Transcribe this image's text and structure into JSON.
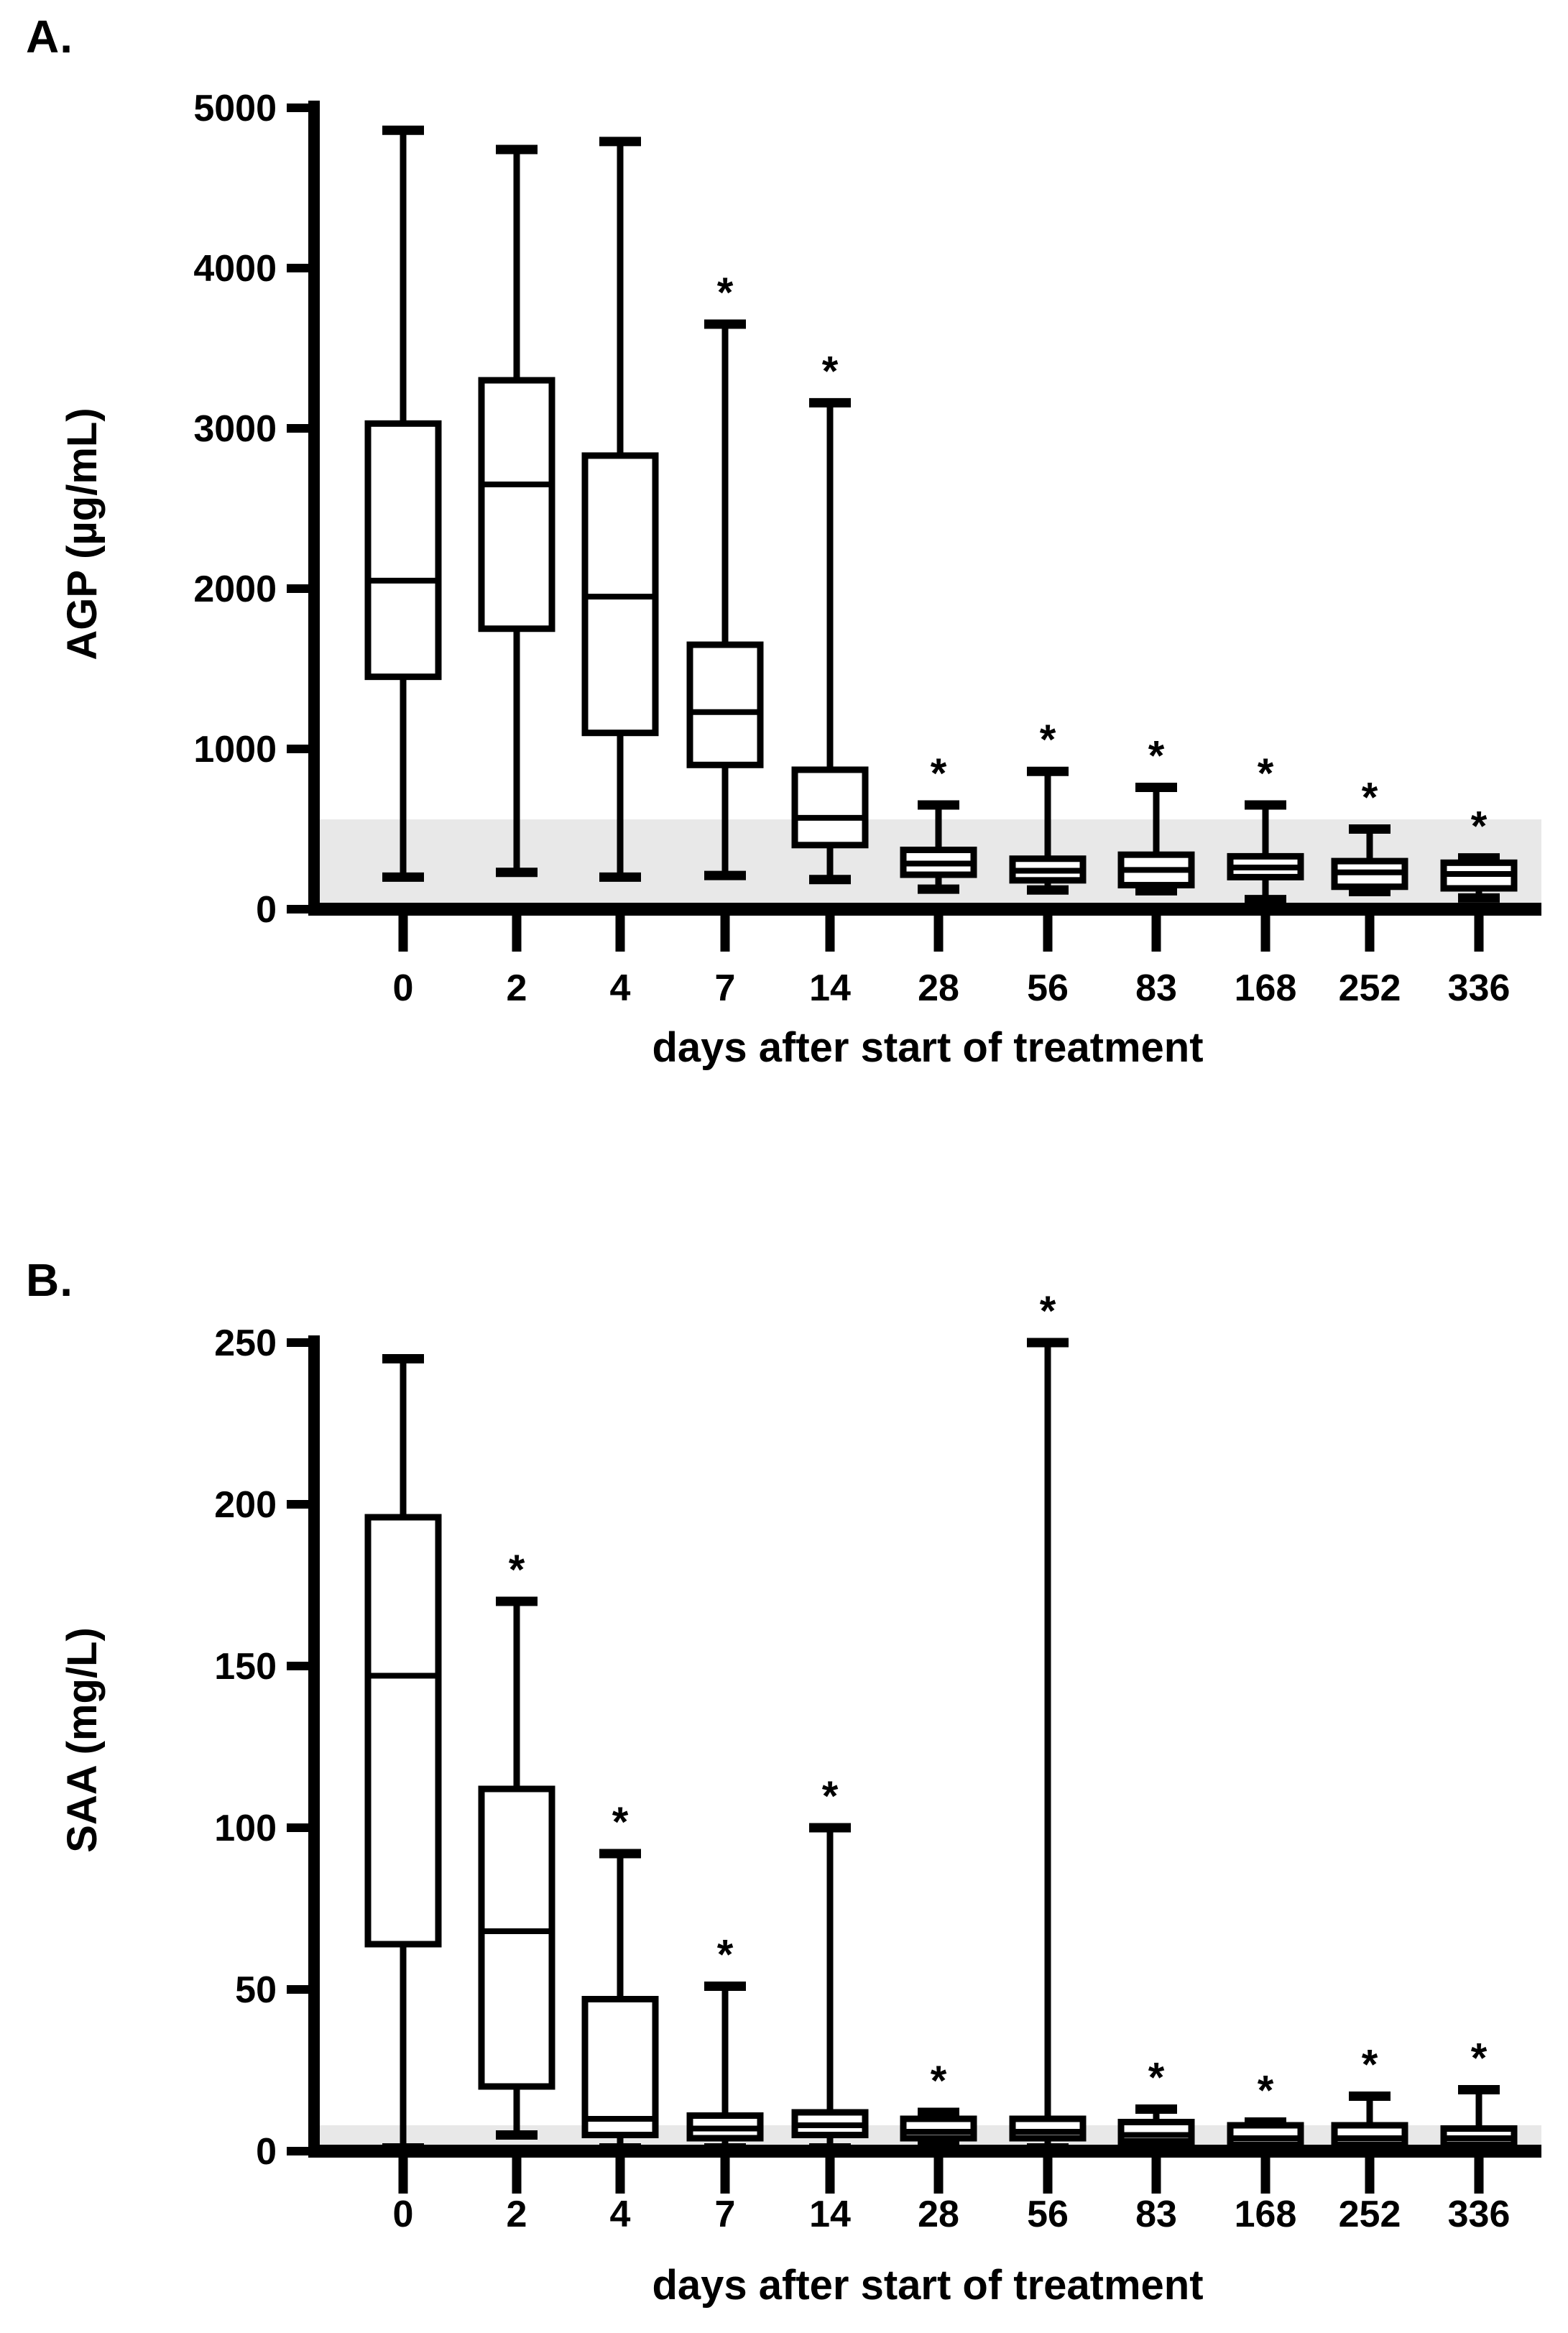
{
  "figure": {
    "panel_a_letter": "A.",
    "panel_b_letter": "B.",
    "significance_marker": "*"
  },
  "colors": {
    "ink": "#000000",
    "reference_band": "#e8e8e8",
    "background": "#ffffff"
  },
  "chart_data": [
    {
      "type": "box",
      "panel_label": "A.",
      "title": "",
      "ylabel": "AGP (µg/mL)",
      "xlabel": "days after start of treatment",
      "ylim": [
        0,
        5000
      ],
      "yticks": [
        0,
        1000,
        2000,
        3000,
        4000,
        5000
      ],
      "grid": false,
      "reference_band": {
        "low": 0,
        "high": 560
      },
      "categories": [
        "0",
        "2",
        "4",
        "7",
        "14",
        "28",
        "56",
        "83",
        "168",
        "252",
        "336"
      ],
      "boxes": [
        {
          "category": "0",
          "whisker_low": 200,
          "q1": 1450,
          "median": 2050,
          "q3": 3030,
          "whisker_high": 4860,
          "significant": false
        },
        {
          "category": "2",
          "whisker_low": 230,
          "q1": 1750,
          "median": 2650,
          "q3": 3300,
          "whisker_high": 4740,
          "significant": false
        },
        {
          "category": "4",
          "whisker_low": 200,
          "q1": 1100,
          "median": 1950,
          "q3": 2830,
          "whisker_high": 4790,
          "significant": false
        },
        {
          "category": "7",
          "whisker_low": 210,
          "q1": 900,
          "median": 1230,
          "q3": 1650,
          "whisker_high": 3650,
          "significant": true
        },
        {
          "category": "14",
          "whisker_low": 185,
          "q1": 400,
          "median": 570,
          "q3": 870,
          "whisker_high": 3160,
          "significant": true
        },
        {
          "category": "28",
          "whisker_low": 125,
          "q1": 215,
          "median": 285,
          "q3": 370,
          "whisker_high": 650,
          "significant": true
        },
        {
          "category": "56",
          "whisker_low": 120,
          "q1": 180,
          "median": 240,
          "q3": 315,
          "whisker_high": 860,
          "significant": true
        },
        {
          "category": "83",
          "whisker_low": 115,
          "q1": 150,
          "median": 245,
          "q3": 340,
          "whisker_high": 760,
          "significant": true
        },
        {
          "category": "168",
          "whisker_low": 60,
          "q1": 200,
          "median": 260,
          "q3": 330,
          "whisker_high": 650,
          "significant": true
        },
        {
          "category": "252",
          "whisker_low": 110,
          "q1": 140,
          "median": 230,
          "q3": 300,
          "whisker_high": 500,
          "significant": true
        },
        {
          "category": "336",
          "whisker_low": 70,
          "q1": 130,
          "median": 220,
          "q3": 290,
          "whisker_high": 320,
          "significant": true
        }
      ]
    },
    {
      "type": "box",
      "panel_label": "B.",
      "title": "",
      "ylabel": "SAA (mg/L)",
      "xlabel": "days after start of treatment",
      "ylim": [
        0,
        250
      ],
      "yticks": [
        0,
        50,
        100,
        150,
        200,
        250
      ],
      "grid": false,
      "reference_band": {
        "low": 0,
        "high": 8
      },
      "categories": [
        "0",
        "2",
        "4",
        "7",
        "14",
        "28",
        "56",
        "83",
        "168",
        "252",
        "336"
      ],
      "boxes": [
        {
          "category": "0",
          "whisker_low": 1,
          "q1": 64,
          "median": 147,
          "q3": 196,
          "whisker_high": 245,
          "significant": false
        },
        {
          "category": "2",
          "whisker_low": 5,
          "q1": 20,
          "median": 68,
          "q3": 112,
          "whisker_high": 170,
          "significant": true
        },
        {
          "category": "4",
          "whisker_low": 1,
          "q1": 5,
          "median": 10,
          "q3": 47,
          "whisker_high": 92,
          "significant": true
        },
        {
          "category": "7",
          "whisker_low": 1,
          "q1": 4,
          "median": 7,
          "q3": 11,
          "whisker_high": 51,
          "significant": true
        },
        {
          "category": "14",
          "whisker_low": 1,
          "q1": 5,
          "median": 8,
          "q3": 12,
          "whisker_high": 100,
          "significant": true
        },
        {
          "category": "28",
          "whisker_low": 2,
          "q1": 4,
          "median": 6,
          "q3": 10,
          "whisker_high": 12,
          "significant": true
        },
        {
          "category": "56",
          "whisker_low": 1,
          "q1": 4,
          "median": 6,
          "q3": 10,
          "whisker_high": 250,
          "significant": true
        },
        {
          "category": "83",
          "whisker_low": 1,
          "q1": 3,
          "median": 5,
          "q3": 9,
          "whisker_high": 13,
          "significant": true
        },
        {
          "category": "168",
          "whisker_low": 1,
          "q1": 2,
          "median": 4,
          "q3": 8,
          "whisker_high": 9,
          "significant": true
        },
        {
          "category": "252",
          "whisker_low": 1,
          "q1": 2,
          "median": 4,
          "q3": 8,
          "whisker_high": 17,
          "significant": true
        },
        {
          "category": "336",
          "whisker_low": 1,
          "q1": 2,
          "median": 4,
          "q3": 7,
          "whisker_high": 19,
          "significant": true
        }
      ]
    }
  ]
}
